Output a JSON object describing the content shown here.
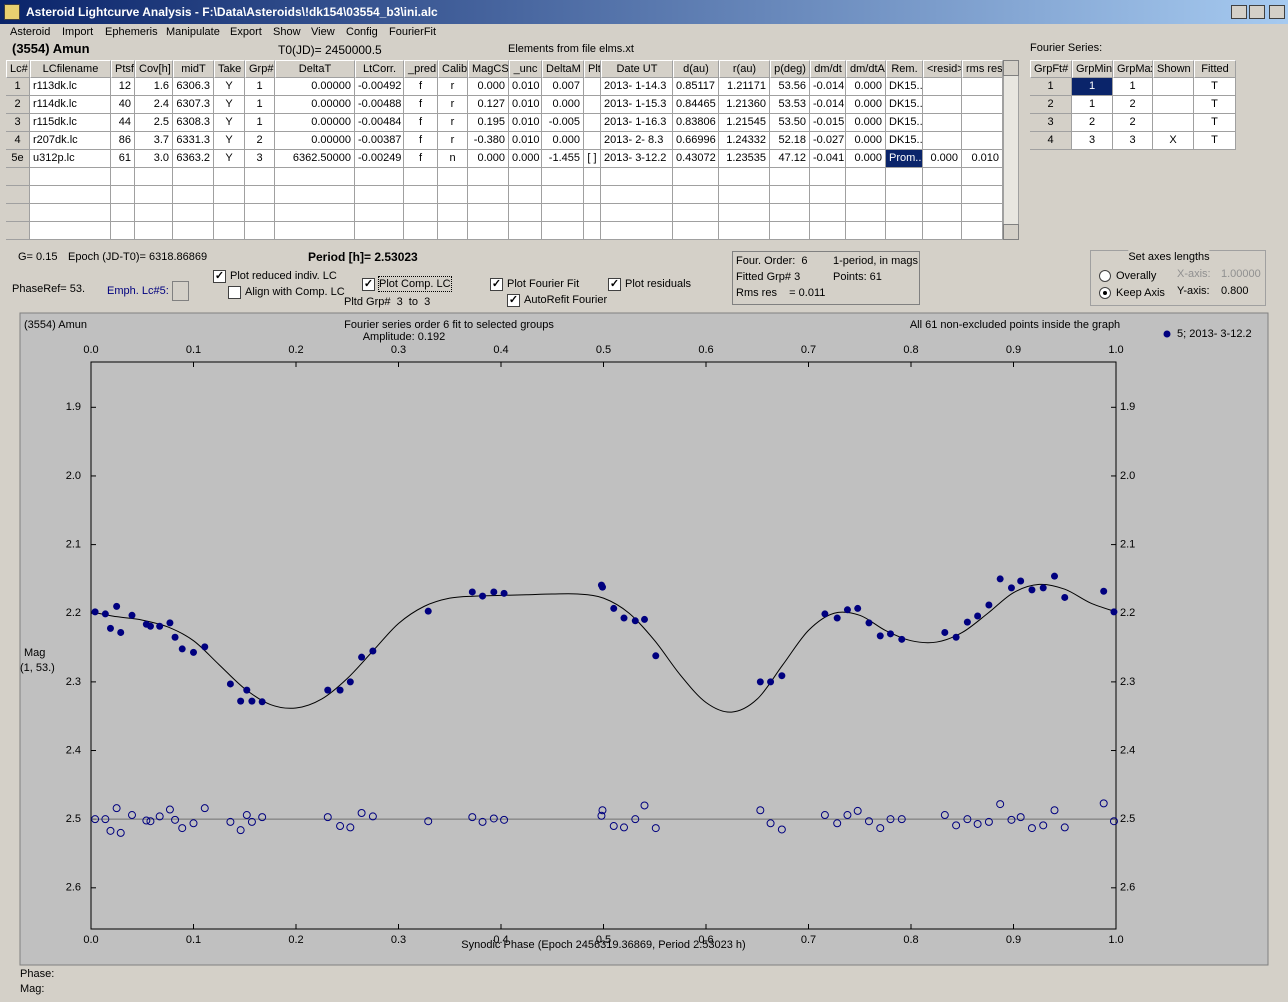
{
  "window": {
    "title": "Asteroid Lightcurve Analysis - F:\\Data\\Asteroids\\!dk154\\03554_b3\\ini.alc"
  },
  "menu": [
    "Asteroid",
    "Import",
    "Ephemeris",
    "Manipulate",
    "Export",
    "Show",
    "View",
    "Config",
    "FourierFit"
  ],
  "header": {
    "object": "(3554) Amun",
    "t0": "T0(JD)= 2450000.5",
    "elements": "Elements from file elms.xt"
  },
  "lc_table": {
    "columns": [
      "Lc#",
      "LCfilename",
      "Ptsf",
      "Cov[h]",
      "midT",
      "Take",
      "Grp#",
      "DeltaT",
      "LtCorr.",
      "_pred.",
      "Calib.",
      "MagCS",
      "_unc",
      "DeltaM",
      "Plt",
      "Date UT",
      "d(au)",
      "r(au)",
      "p(deg)",
      "dm/dt",
      "dm/dtA",
      "Rem.",
      "<resid>",
      "rms res"
    ],
    "rows": [
      [
        "1",
        "r113dk.lc",
        "12",
        "1.6",
        "6306.3",
        "Y",
        "1",
        "0.00000",
        "-0.00492",
        "f",
        "r",
        "0.000",
        "0.010",
        "0.007",
        null,
        "2013- 1-14.3",
        "0.85117",
        "1.21171",
        "53.56",
        "-0.014",
        "0.000",
        "DK15..",
        null,
        null
      ],
      [
        "2",
        "r114dk.lc",
        "40",
        "2.4",
        "6307.3",
        "Y",
        "1",
        "0.00000",
        "-0.00488",
        "f",
        "r",
        "0.127",
        "0.010",
        "0.000",
        null,
        "2013- 1-15.3",
        "0.84465",
        "1.21360",
        "53.53",
        "-0.014",
        "0.000",
        "DK15..",
        null,
        null
      ],
      [
        "3",
        "r115dk.lc",
        "44",
        "2.5",
        "6308.3",
        "Y",
        "1",
        "0.00000",
        "-0.00484",
        "f",
        "r",
        "0.195",
        "0.010",
        "-0.005",
        null,
        "2013- 1-16.3",
        "0.83806",
        "1.21545",
        "53.50",
        "-0.015",
        "0.000",
        "DK15..",
        null,
        null
      ],
      [
        "4",
        "r207dk.lc",
        "86",
        "3.7",
        "6331.3",
        "Y",
        "2",
        "0.00000",
        "-0.00387",
        "f",
        "r",
        "-0.380",
        "0.010",
        "0.000",
        null,
        "2013- 2- 8.3",
        "0.66996",
        "1.24332",
        "52.18",
        "-0.027",
        "0.000",
        "DK15..",
        null,
        null
      ],
      [
        "5e",
        "u312p.lc",
        "61",
        "3.0",
        "6363.2",
        "Y",
        "3",
        "6362.50000",
        "-0.00249",
        "f",
        "n",
        "0.000",
        "0.000",
        "-1.455",
        "[ ]",
        "2013- 3-12.2",
        "0.43072",
        "1.23535",
        "47.12",
        "-0.041",
        "0.000",
        "Prom...",
        "0.000",
        "0.010"
      ]
    ],
    "selected_cell": [
      4,
      21
    ]
  },
  "fourier_table": {
    "title": "Fourier Series:",
    "columns": [
      "GrpFt#",
      "GrpMin",
      "GrpMax",
      "Shown",
      "Fitted"
    ],
    "rows": [
      [
        "1",
        "1",
        "1",
        null,
        "T"
      ],
      [
        "2",
        "1",
        "2",
        null,
        "T"
      ],
      [
        "3",
        "2",
        "2",
        null,
        "T"
      ],
      [
        "4",
        "3",
        "3",
        "X",
        "T"
      ]
    ],
    "selected_cell": [
      0,
      1
    ]
  },
  "controls": {
    "g": "G= 0.15",
    "epoch": "Epoch (JD-T0)= 6318.86869",
    "period": "Period [h]= 2.53023",
    "phase_ref": "PhaseRef= 53.",
    "emph": "Emph. Lc#5:",
    "checkboxes": [
      {
        "label": "Plot reduced indiv. LC",
        "checked": true
      },
      {
        "label": "Align with Comp. LC",
        "checked": false
      },
      {
        "label": "Plot Comp. LC",
        "checked": true
      },
      {
        "label": "Plot Fourier Fit",
        "checked": true
      },
      {
        "label": "AutoRefit Fourier",
        "checked": true
      },
      {
        "label": "Plot residuals",
        "checked": true
      }
    ],
    "pltd_grp": "Pltd Grp#  3  to  3"
  },
  "fit_info": [
    "Four. Order:  6",
    "1-period, in mags",
    "Fitted Grp# 3",
    "Points: 61",
    "Rms res    = 0.011"
  ],
  "axes_box": {
    "title": "Set axes lengths",
    "options": [
      {
        "label": "Overally",
        "selected": false
      },
      {
        "label": "Keep Axis",
        "selected": true
      }
    ],
    "x_label": "X-axis:",
    "x_value": "1.00000",
    "y_label": "Y-axis:",
    "y_value": "0.800"
  },
  "plot": {
    "type": "scatter",
    "object": "(3554) Amun",
    "title": "Fourier series order 6 fit to selected groups",
    "amplitude": "Amplitude: 0.192",
    "note": "All 61 non-excluded points inside the graph",
    "x_label": "Synodic Phase (Epoch 2456319.36869, Period 2.53023 h)",
    "y_label": "Mag",
    "y_sublabel": "(1, 53.)",
    "xlim": [
      0,
      1
    ],
    "ylim": [
      1.834,
      2.66
    ],
    "y_inverted": true,
    "xticks": [
      {
        "value": 0,
        "label": "0.0"
      },
      0.1,
      0.2,
      0.3,
      0.4,
      0.5,
      0.6,
      0.7,
      0.8,
      0.9,
      {
        "value": 1,
        "label": "1.0"
      }
    ],
    "yticks": [
      1.9,
      {
        "value": 2,
        "label": "2.0"
      },
      2.1,
      2.2,
      2.3,
      2.4,
      2.5,
      2.6
    ],
    "series": [
      {
        "name": "5; 2013- 3-12.2",
        "color": "#00007f",
        "x": [
          0.004,
          0.014,
          0.019,
          0.025,
          0.029,
          0.04,
          0.054,
          0.058,
          0.067,
          0.077,
          0.082,
          0.089,
          0.1,
          0.111,
          0.136,
          0.146,
          0.152,
          0.157,
          0.167,
          0.231,
          0.243,
          0.253,
          0.264,
          0.275,
          0.329,
          0.372,
          0.382,
          0.393,
          0.403,
          0.498,
          0.499,
          0.51,
          0.52,
          0.531,
          0.54,
          0.551,
          0.653,
          0.663,
          0.674,
          0.716,
          0.728,
          0.738,
          0.748,
          0.759,
          0.77,
          0.78,
          0.791,
          0.833,
          0.844,
          0.855,
          0.865,
          0.876,
          0.887,
          0.898,
          0.907,
          0.918,
          0.929,
          0.94,
          0.95,
          0.988,
          0.998
        ],
        "values": [
          2.198,
          2.201,
          2.222,
          2.19,
          2.228,
          2.203,
          2.216,
          2.219,
          2.219,
          2.214,
          2.235,
          2.252,
          2.257,
          2.249,
          2.303,
          2.328,
          2.312,
          2.328,
          2.329,
          2.312,
          2.312,
          2.3,
          2.264,
          2.255,
          2.197,
          2.169,
          2.175,
          2.169,
          2.171,
          2.159,
          2.162,
          2.193,
          2.207,
          2.211,
          2.209,
          2.262,
          2.3,
          2.3,
          2.291,
          2.201,
          2.207,
          2.195,
          2.193,
          2.214,
          2.233,
          2.23,
          2.238,
          2.228,
          2.235,
          2.213,
          2.204,
          2.188,
          2.15,
          2.163,
          2.153,
          2.166,
          2.163,
          2.146,
          2.177,
          2.168,
          2.198
        ],
        "residuals": [
          2.5,
          2.5,
          2.517,
          2.484,
          2.52,
          2.494,
          2.502,
          2.503,
          2.496,
          2.486,
          2.501,
          2.513,
          2.506,
          2.484,
          2.504,
          2.516,
          2.494,
          2.504,
          2.497,
          2.497,
          2.51,
          2.512,
          2.491,
          2.496,
          2.503,
          2.497,
          2.504,
          2.499,
          2.501,
          2.495,
          2.487,
          2.51,
          2.512,
          2.5,
          2.48,
          2.513,
          2.487,
          2.506,
          2.515,
          2.494,
          2.506,
          2.494,
          2.488,
          2.503,
          2.513,
          2.5,
          2.5,
          2.494,
          2.509,
          2.5,
          2.507,
          2.504,
          2.478,
          2.501,
          2.497,
          2.513,
          2.509,
          2.487,
          2.512,
          2.477,
          2.503
        ]
      }
    ],
    "residual_line": 2.5,
    "fit": {
      "x": [
        0,
        0.025,
        0.05,
        0.075,
        0.1,
        0.125,
        0.15,
        0.175,
        0.2,
        0.225,
        0.25,
        0.275,
        0.3,
        0.325,
        0.35,
        0.375,
        0.4,
        0.425,
        0.45,
        0.475,
        0.5,
        0.525,
        0.55,
        0.575,
        0.6,
        0.625,
        0.65,
        0.675,
        0.7,
        0.725,
        0.75,
        0.775,
        0.8,
        0.825,
        0.85,
        0.875,
        0.9,
        0.925,
        0.95,
        0.975,
        1
      ],
      "values": [
        2.198,
        2.205,
        2.21,
        2.22,
        2.24,
        2.275,
        2.31,
        2.333,
        2.338,
        2.325,
        2.295,
        2.255,
        2.215,
        2.19,
        2.178,
        2.175,
        2.174,
        2.173,
        2.172,
        2.172,
        2.178,
        2.2,
        2.24,
        2.29,
        2.33,
        2.344,
        2.325,
        2.275,
        2.225,
        2.2,
        2.203,
        2.225,
        2.24,
        2.242,
        2.228,
        2.2,
        2.17,
        2.158,
        2.165,
        2.185,
        2.198
      ],
      "color": "#000000"
    }
  },
  "status": {
    "phase": "Phase:",
    "mag": "Mag:"
  }
}
